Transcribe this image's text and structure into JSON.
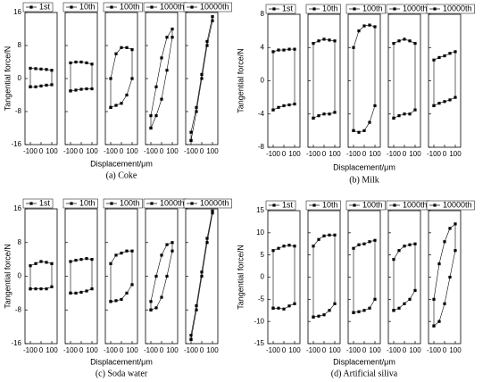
{
  "chart_data": [
    {
      "type": "line",
      "title": "(a) Coke",
      "xlabel": "Displacement/μm",
      "ylabel": "Tangential force/N",
      "ylim": [
        -16,
        16
      ],
      "yticks": [
        -16,
        -8,
        0,
        8,
        16
      ],
      "xlim": [
        -150,
        150
      ],
      "xticks": [
        -100,
        0,
        100
      ],
      "series": [
        {
          "name": "1st",
          "color": "#000000",
          "x": [
            -100,
            -50,
            0,
            50,
            100,
            100,
            50,
            0,
            -50,
            -100,
            -100
          ],
          "values": [
            -2,
            -2,
            -1.8,
            -1.6,
            -1.5,
            2,
            2.2,
            2.3,
            2.4,
            2.5,
            -2
          ]
        },
        {
          "name": "10th",
          "color": "#000000",
          "x": [
            -100,
            -50,
            0,
            50,
            100,
            100,
            50,
            0,
            -50,
            -100,
            -100
          ],
          "values": [
            -3,
            -2.8,
            -2.6,
            -2.5,
            -2.5,
            3.5,
            3.8,
            4,
            4,
            3.8,
            -3
          ]
        },
        {
          "name": "100th",
          "color": "#000000",
          "x": [
            -100,
            -50,
            0,
            50,
            100,
            100,
            50,
            0,
            -50,
            -100,
            -100
          ],
          "values": [
            -7,
            -6.5,
            -6,
            -4,
            0,
            7,
            7.5,
            7.5,
            6,
            0,
            -7
          ]
        },
        {
          "name": "1000th",
          "color": "#000000",
          "x": [
            -100,
            -50,
            0,
            50,
            100,
            100,
            50,
            0,
            -50,
            -100,
            -100
          ],
          "values": [
            -12,
            -9,
            -5,
            2,
            10,
            12,
            10,
            5,
            -2,
            -9,
            -12
          ]
        },
        {
          "name": "10000th",
          "color": "#000000",
          "x": [
            -100,
            -50,
            0,
            50,
            100,
            100,
            50,
            0,
            -50,
            -100,
            -100
          ],
          "values": [
            -15,
            -8,
            0,
            8,
            14,
            15,
            9,
            1,
            -7,
            -13,
            -15
          ]
        }
      ]
    },
    {
      "type": "line",
      "title": "(b) Milk",
      "xlabel": "Displacement/μm",
      "ylabel": "Tangential force/N",
      "ylim": [
        -8,
        8
      ],
      "yticks": [
        -8,
        -4,
        0,
        4,
        8
      ],
      "xlim": [
        -150,
        150
      ],
      "xticks": [
        -100,
        0,
        100
      ],
      "series": [
        {
          "name": "1st",
          "color": "#000000",
          "x": [
            -100,
            -50,
            0,
            50,
            100,
            100,
            50,
            0,
            -50,
            -100,
            -100
          ],
          "values": [
            -3.5,
            -3.2,
            -3,
            -2.9,
            -2.8,
            3.8,
            3.8,
            3.7,
            3.7,
            3.5,
            -3.5
          ]
        },
        {
          "name": "10th",
          "color": "#000000",
          "x": [
            -100,
            -50,
            0,
            50,
            100,
            100,
            50,
            0,
            -50,
            -100,
            -100
          ],
          "values": [
            -4.5,
            -4.2,
            -4,
            -4,
            -3.8,
            4.8,
            4.9,
            5,
            4.8,
            4.5,
            -4.5
          ]
        },
        {
          "name": "100th",
          "color": "#000000",
          "x": [
            -100,
            -50,
            0,
            50,
            100,
            100,
            50,
            0,
            -50,
            -100,
            -100
          ],
          "values": [
            -6,
            -6.2,
            -6,
            -5,
            -3,
            6.5,
            6.7,
            6.6,
            6,
            4,
            -6
          ]
        },
        {
          "name": "1000th",
          "color": "#000000",
          "x": [
            -100,
            -50,
            0,
            50,
            100,
            100,
            50,
            0,
            -50,
            -100,
            -100
          ],
          "values": [
            -4.5,
            -4.2,
            -4,
            -4,
            -3.5,
            4.5,
            4.8,
            5,
            4.8,
            4.5,
            -4.5
          ]
        },
        {
          "name": "10000th",
          "color": "#000000",
          "x": [
            -100,
            -50,
            0,
            50,
            100,
            100,
            50,
            0,
            -50,
            -100,
            -100
          ],
          "values": [
            -3,
            -2.7,
            -2.5,
            -2.3,
            -2,
            3.5,
            3.3,
            3,
            2.8,
            2.5,
            -3
          ]
        }
      ]
    },
    {
      "type": "line",
      "title": "(c) Soda water",
      "xlabel": "Displacement/μm",
      "ylabel": "Tangential force/N",
      "ylim": [
        -16,
        16
      ],
      "yticks": [
        -16,
        -8,
        0,
        8,
        16
      ],
      "xlim": [
        -150,
        150
      ],
      "xticks": [
        -100,
        0,
        100
      ],
      "series": [
        {
          "name": "1st",
          "color": "#000000",
          "x": [
            -100,
            -50,
            0,
            50,
            100,
            100,
            50,
            0,
            -50,
            -100,
            -100
          ],
          "values": [
            -3,
            -3,
            -3,
            -3,
            -2.5,
            3,
            3.3,
            3.5,
            3,
            2.5,
            -3
          ]
        },
        {
          "name": "10th",
          "color": "#000000",
          "x": [
            -100,
            -50,
            0,
            50,
            100,
            100,
            50,
            0,
            -50,
            -100,
            -100
          ],
          "values": [
            -4,
            -4,
            -3.8,
            -3.5,
            -3,
            4,
            4.2,
            4,
            3.8,
            3.5,
            -4
          ]
        },
        {
          "name": "100th",
          "color": "#000000",
          "x": [
            -100,
            -50,
            0,
            50,
            100,
            100,
            50,
            0,
            -50,
            -100,
            -100
          ],
          "values": [
            -6,
            -5.8,
            -5.5,
            -4,
            -2,
            6,
            6,
            5.5,
            5,
            3,
            -6
          ]
        },
        {
          "name": "1000th",
          "color": "#000000",
          "x": [
            -100,
            -50,
            0,
            50,
            100,
            100,
            50,
            0,
            -50,
            -100,
            -100
          ],
          "values": [
            -8,
            -7.5,
            -5,
            0,
            6,
            8,
            7.5,
            5,
            0,
            -6,
            -8
          ]
        },
        {
          "name": "10000th",
          "color": "#000000",
          "x": [
            -100,
            -50,
            0,
            50,
            100,
            100,
            50,
            0,
            -50,
            -100,
            -100
          ],
          "values": [
            -15,
            -8,
            0,
            8,
            15,
            15.5,
            9,
            1,
            -7,
            -14,
            -15
          ]
        }
      ]
    },
    {
      "type": "line",
      "title": "(d) Artificial siliva",
      "xlabel": "Displacement/μm",
      "ylabel": "Tangential force/N",
      "ylim": [
        -15,
        15
      ],
      "yticks": [
        -15,
        -10,
        -5,
        0,
        5,
        10,
        15
      ],
      "xlim": [
        -150,
        150
      ],
      "xticks": [
        -100,
        0,
        100
      ],
      "series": [
        {
          "name": "1st",
          "color": "#000000",
          "x": [
            -100,
            -50,
            0,
            50,
            100,
            100,
            50,
            0,
            -50,
            -100,
            -100
          ],
          "values": [
            -7,
            -7,
            -7.2,
            -6.5,
            -6,
            7,
            7.2,
            7,
            6.5,
            6,
            -7
          ]
        },
        {
          "name": "10th",
          "color": "#000000",
          "x": [
            -100,
            -50,
            0,
            50,
            100,
            100,
            50,
            0,
            -50,
            -100,
            -100
          ],
          "values": [
            -9,
            -8.8,
            -8.5,
            -7.5,
            -6,
            9.5,
            9.5,
            9.3,
            8.5,
            7,
            -9
          ]
        },
        {
          "name": "100th",
          "color": "#000000",
          "x": [
            -100,
            -50,
            0,
            50,
            100,
            100,
            50,
            0,
            -50,
            -100,
            -100
          ],
          "values": [
            -8,
            -7.8,
            -7.5,
            -7,
            -5,
            8.3,
            8,
            7.5,
            7.3,
            6.5,
            -8
          ]
        },
        {
          "name": "1000th",
          "color": "#000000",
          "x": [
            -100,
            -50,
            0,
            50,
            100,
            100,
            50,
            0,
            -50,
            -100,
            -100
          ],
          "values": [
            -7.5,
            -7,
            -6,
            -5,
            -3,
            7.5,
            7.3,
            7,
            6,
            4,
            -7.5
          ]
        },
        {
          "name": "10000th",
          "color": "#000000",
          "x": [
            -100,
            -50,
            0,
            50,
            100,
            100,
            50,
            0,
            -50,
            -100,
            -100
          ],
          "values": [
            -11,
            -10,
            -6,
            0,
            6,
            12,
            11,
            8,
            3,
            -5,
            -11
          ]
        }
      ]
    }
  ]
}
